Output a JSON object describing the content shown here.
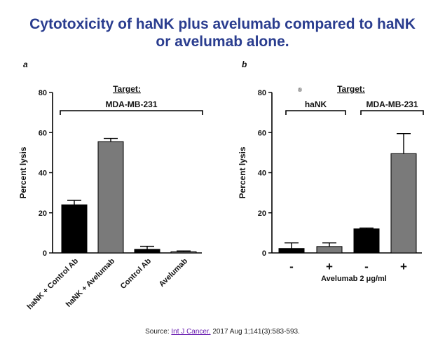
{
  "header": {
    "title_line1": "Cytotoxicity of haNK plus avelumab compared to haNK",
    "title_line2": "or avelumab alone."
  },
  "footer": {
    "prefix": "Source:",
    "link_text": "Int J Cancer.",
    "citation": "2017 Aug 1;141(3):583-593."
  },
  "colors": {
    "title": "#2a3d8f",
    "black_bar": "#000000",
    "grey_bar": "#7a7a7a",
    "link": "#6a1fb0"
  },
  "chart_data": [
    {
      "panel": "a",
      "type": "bar",
      "ylabel": "Percent lysis",
      "ylim": [
        0,
        80
      ],
      "yticks": [
        0,
        20,
        40,
        60,
        80
      ],
      "bracket_labels": {
        "heading": "Target:",
        "groups": [
          "MDA-MB-231"
        ]
      },
      "categories": [
        "haNK + Control Ab",
        "haNK + Avelumab",
        "Control Ab",
        "Avelumab"
      ],
      "values": [
        24,
        55.5,
        1.8,
        0.6
      ],
      "errors": [
        2.2,
        1.6,
        1.5,
        0.4
      ],
      "bar_colors": [
        "#000000",
        "#7a7a7a",
        "#000000",
        "#7a7a7a"
      ]
    },
    {
      "panel": "b",
      "type": "bar",
      "ylabel": "Percent lysis",
      "xlabel": "Avelumab 2 μg/ml",
      "ylim": [
        0,
        80
      ],
      "yticks": [
        0,
        20,
        40,
        60,
        80
      ],
      "bracket_labels": {
        "heading": "Target:",
        "groups": [
          "haNK",
          "MDA-MB-231"
        ]
      },
      "symbol": "®",
      "categories": [
        "-",
        "+",
        "-",
        "+"
      ],
      "values": [
        2.2,
        3.2,
        12,
        49.5
      ],
      "errors": [
        2.8,
        1.8,
        0.4,
        10
      ],
      "bar_colors": [
        "#000000",
        "#7a7a7a",
        "#000000",
        "#7a7a7a"
      ]
    }
  ]
}
